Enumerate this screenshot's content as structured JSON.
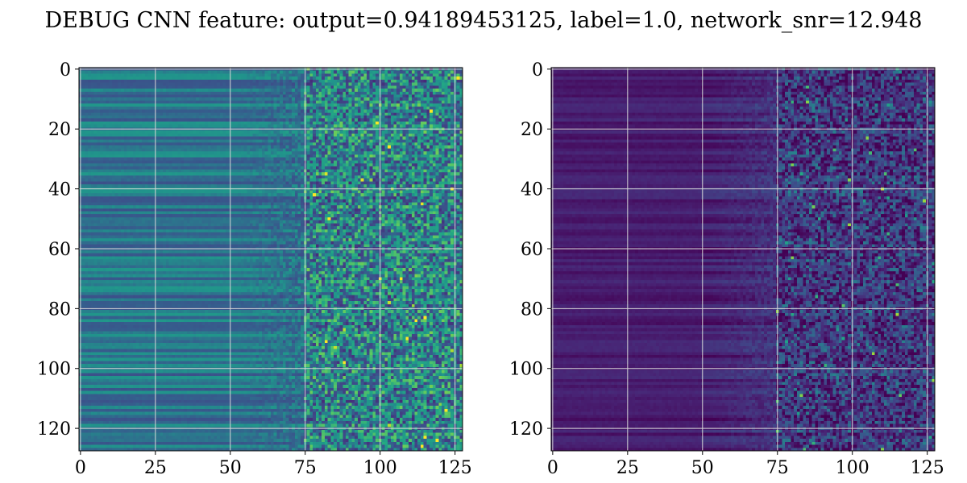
{
  "figure": {
    "title": "DEBUG CNN feature: output=0.94189453125, label=1.0, network_snr=12.948"
  },
  "chart_data": [
    {
      "type": "heatmap",
      "colormap": "viridis",
      "rows": 128,
      "cols": 128,
      "xlim": [
        -0.5,
        127.5
      ],
      "ylim": [
        127.5,
        -0.5
      ],
      "xticks": [
        0,
        25,
        50,
        75,
        100,
        125
      ],
      "yticks": [
        0,
        20,
        40,
        60,
        80,
        100,
        120
      ],
      "xticklabels": [
        "0",
        "25",
        "50",
        "75",
        "100",
        "125"
      ],
      "yticklabels": [
        "0",
        "20",
        "40",
        "60",
        "80",
        "100",
        "120"
      ],
      "grid": true,
      "pattern": {
        "smooth_until_col": 50,
        "noisy_from_col": 75,
        "base_level": 0.42,
        "noise_amplitude": 0.35
      }
    },
    {
      "type": "heatmap",
      "colormap": "viridis",
      "rows": 128,
      "cols": 128,
      "xlim": [
        -0.5,
        127.5
      ],
      "ylim": [
        127.5,
        -0.5
      ],
      "xticks": [
        0,
        25,
        50,
        75,
        100,
        125
      ],
      "yticks": [
        0,
        20,
        40,
        60,
        80,
        100,
        120
      ],
      "xticklabels": [
        "0",
        "25",
        "50",
        "75",
        "100",
        "125"
      ],
      "yticklabels": [
        "0",
        "20",
        "40",
        "60",
        "80",
        "100",
        "120"
      ],
      "grid": true,
      "pattern": {
        "smooth_until_col": 50,
        "noisy_from_col": 75,
        "base_level": 0.1,
        "noise_amplitude": 0.3
      }
    }
  ]
}
